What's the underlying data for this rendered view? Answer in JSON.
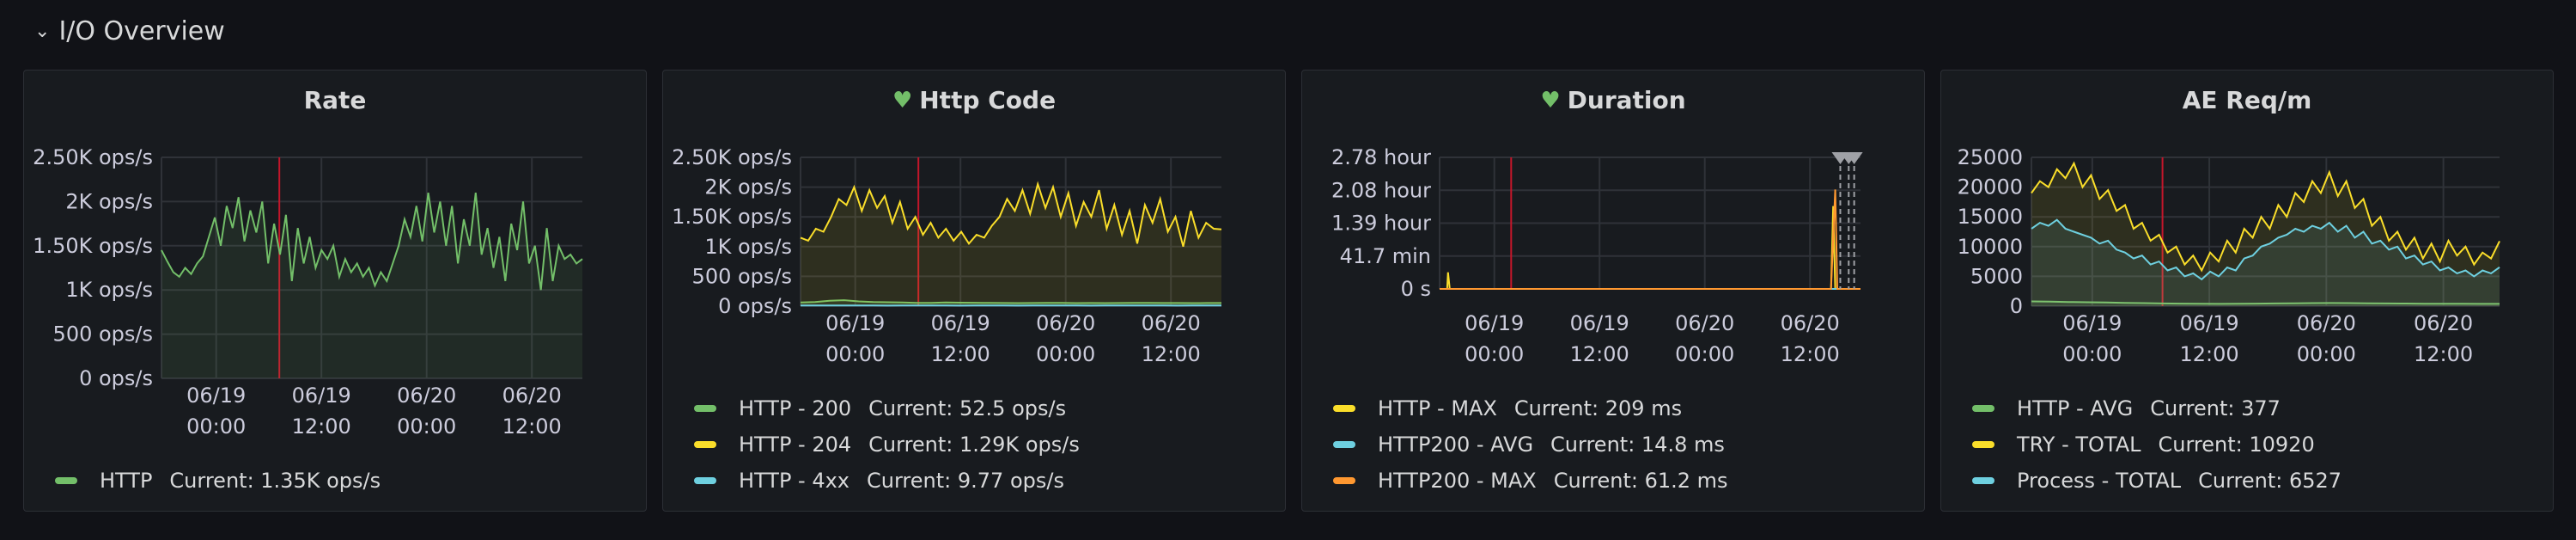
{
  "row": {
    "title": "I/O Overview",
    "chevron_icon": "chevron-down-icon"
  },
  "colors": {
    "green": "#73bf69",
    "yellow": "#fade2a",
    "blue": "#8ab8ff",
    "cyan": "#6ed0e0",
    "orange": "#ff9830",
    "red": "#c4162a"
  },
  "panels": [
    {
      "title": "Rate",
      "health_icon": false,
      "legend": [
        {
          "name": "HTTP",
          "value": "Current: 1.35K ops/s",
          "color": "#73bf69"
        }
      ]
    },
    {
      "title": "Http Code",
      "health_icon": true,
      "legend": [
        {
          "name": "HTTP - 200",
          "value": "Current: 52.5 ops/s",
          "color": "#73bf69"
        },
        {
          "name": "HTTP - 204",
          "value": "Current: 1.29K ops/s",
          "color": "#fade2a"
        },
        {
          "name": "HTTP - 4xx",
          "value": "Current: 9.77 ops/s",
          "color": "#6ed0e0"
        }
      ]
    },
    {
      "title": "Duration",
      "health_icon": true,
      "legend": [
        {
          "name": "HTTP - MAX",
          "value": "Current: 209 ms",
          "color": "#fade2a"
        },
        {
          "name": "HTTP200 - AVG",
          "value": "Current: 14.8 ms",
          "color": "#6ed0e0"
        },
        {
          "name": "HTTP200 - MAX",
          "value": "Current: 61.2 ms",
          "color": "#ff9830"
        }
      ]
    },
    {
      "title": "AE Req/m",
      "health_icon": false,
      "legend": [
        {
          "name": "HTTP - AVG",
          "value": "Current: 377",
          "color": "#73bf69"
        },
        {
          "name": "TRY - TOTAL",
          "value": "Current: 10920",
          "color": "#fade2a"
        },
        {
          "name": "Process - TOTAL",
          "value": "Current: 6527",
          "color": "#6ed0e0"
        }
      ]
    }
  ],
  "chart_data": [
    {
      "type": "area",
      "title": "Rate",
      "x_ticks": [
        "06/19\n00:00",
        "06/19\n12:00",
        "06/20\n00:00",
        "06/20\n12:00"
      ],
      "y_ticks": [
        "0 ops/s",
        "500 ops/s",
        "1K ops/s",
        "1.50K ops/s",
        "2K ops/s",
        "2.50K ops/s"
      ],
      "ylim": [
        0,
        2500
      ],
      "series": [
        {
          "name": "HTTP",
          "color": "#73bf69",
          "values": [
            1450,
            1320,
            1200,
            1150,
            1250,
            1180,
            1300,
            1380,
            1600,
            1820,
            1500,
            1950,
            1700,
            2050,
            1550,
            1900,
            1650,
            2000,
            1300,
            1750,
            1400,
            1850,
            1100,
            1700,
            1300,
            1600,
            1250,
            1450,
            1350,
            1500,
            1150,
            1350,
            1200,
            1300,
            1150,
            1250,
            1050,
            1200,
            1100,
            1300,
            1500,
            1800,
            1600,
            1950,
            1550,
            2100,
            1650,
            2000,
            1500,
            1950,
            1300,
            1800,
            1500,
            2100,
            1400,
            1700,
            1250,
            1600,
            1100,
            1750,
            1450,
            2000,
            1300,
            1500,
            1000,
            1700,
            1100,
            1500,
            1350,
            1400,
            1300,
            1350
          ]
        }
      ]
    },
    {
      "type": "area",
      "title": "Http Code",
      "x_ticks": [
        "06/19\n00:00",
        "06/19\n12:00",
        "06/20\n00:00",
        "06/20\n12:00"
      ],
      "y_ticks": [
        "0 ops/s",
        "500 ops/s",
        "1K ops/s",
        "1.50K ops/s",
        "2K ops/s",
        "2.50K ops/s"
      ],
      "ylim": [
        0,
        2500
      ],
      "series": [
        {
          "name": "HTTP - 200",
          "color": "#73bf69",
          "values": [
            60,
            70,
            90,
            100,
            80,
            70,
            65,
            60,
            55,
            55,
            60,
            58,
            56,
            54,
            52,
            50,
            52,
            55,
            53,
            50,
            52,
            51,
            52,
            55,
            53,
            52,
            52,
            50,
            52,
            52
          ]
        },
        {
          "name": "HTTP - 204",
          "color": "#fade2a",
          "values": [
            1150,
            1100,
            1300,
            1250,
            1500,
            1800,
            1700,
            2000,
            1600,
            1950,
            1650,
            1850,
            1400,
            1750,
            1300,
            1500,
            1200,
            1400,
            1150,
            1300,
            1100,
            1250,
            1050,
            1200,
            1150,
            1350,
            1500,
            1800,
            1600,
            1950,
            1550,
            2050,
            1650,
            2000,
            1500,
            1900,
            1350,
            1750,
            1500,
            1950,
            1300,
            1700,
            1200,
            1600,
            1050,
            1700,
            1400,
            1800,
            1250,
            1500,
            1000,
            1600,
            1150,
            1400,
            1300,
            1290
          ]
        },
        {
          "name": "HTTP - 4xx",
          "color": "#6ed0e0",
          "values": [
            10,
            10,
            12,
            11,
            10,
            10,
            9,
            10,
            10,
            11,
            10,
            9,
            10,
            10,
            10,
            9,
            10,
            10,
            10,
            10,
            9,
            10,
            10,
            10,
            10,
            10,
            9,
            10,
            10,
            9.77
          ]
        }
      ]
    },
    {
      "type": "line",
      "title": "Duration",
      "x_ticks": [
        "06/19\n00:00",
        "06/19\n12:00",
        "06/20\n00:00",
        "06/20\n12:00"
      ],
      "y_ticks": [
        "0 s",
        "41.7 min",
        "1.39 hour",
        "2.08 hour",
        "2.78 hour"
      ],
      "ylim": [
        0,
        2.78
      ],
      "series": [
        {
          "name": "HTTP - MAX",
          "color": "#fade2a",
          "points": [
            [
              0,
              0
            ],
            [
              0.018,
              0
            ],
            [
              0.02,
              0.35
            ],
            [
              0.024,
              0
            ],
            [
              0.93,
              0
            ],
            [
              0.935,
              1.75
            ],
            [
              0.94,
              0
            ],
            [
              0.97,
              0
            ],
            [
              1,
              0
            ]
          ]
        },
        {
          "name": "HTTP200 - AVG",
          "color": "#6ed0e0",
          "points": [
            [
              0,
              0
            ],
            [
              1,
              0
            ]
          ]
        },
        {
          "name": "HTTP200 - MAX",
          "color": "#ff9830",
          "points": [
            [
              0,
              0
            ],
            [
              0.93,
              0
            ],
            [
              0.94,
              2.1
            ],
            [
              0.945,
              0
            ],
            [
              1,
              0
            ]
          ]
        }
      ]
    },
    {
      "type": "area",
      "title": "AE Req/m",
      "x_ticks": [
        "06/19\n00:00",
        "06/19\n12:00",
        "06/20\n00:00",
        "06/20\n12:00"
      ],
      "y_ticks": [
        "0",
        "5000",
        "10000",
        "15000",
        "20000",
        "25000"
      ],
      "ylim": [
        0,
        25000
      ],
      "series": [
        {
          "name": "HTTP - AVG",
          "color": "#73bf69",
          "values": [
            800,
            750,
            700,
            650,
            600,
            550,
            500,
            450,
            420,
            400,
            380,
            400,
            420,
            450,
            480,
            500,
            520,
            500,
            480,
            450,
            430,
            410,
            400,
            390,
            380,
            377
          ]
        },
        {
          "name": "TRY - TOTAL",
          "color": "#fade2a",
          "values": [
            19000,
            21000,
            20000,
            23000,
            21500,
            24000,
            20000,
            22000,
            18000,
            19500,
            16000,
            17000,
            13000,
            14000,
            11000,
            12000,
            9000,
            10000,
            7000,
            8500,
            6000,
            9000,
            7500,
            11000,
            9000,
            13000,
            11500,
            15000,
            13000,
            17000,
            15000,
            19000,
            17500,
            21000,
            19000,
            22500,
            18500,
            21000,
            16500,
            18000,
            13500,
            15000,
            11000,
            12500,
            9500,
            11500,
            8000,
            10500,
            7500,
            11000,
            8500,
            10000,
            7000,
            9000,
            8000,
            10920
          ]
        },
        {
          "name": "Process - TOTAL",
          "color": "#6ed0e0",
          "values": [
            13000,
            14000,
            13500,
            14500,
            13000,
            12500,
            12000,
            11500,
            10500,
            11000,
            9500,
            9000,
            8000,
            8500,
            7000,
            7500,
            6000,
            6500,
            5000,
            5500,
            4500,
            5800,
            5000,
            6500,
            6000,
            8000,
            8500,
            10000,
            10500,
            11500,
            12000,
            13000,
            12500,
            13500,
            13000,
            14000,
            12500,
            13500,
            11500,
            12500,
            10500,
            11000,
            9500,
            10000,
            8000,
            8500,
            7000,
            7500,
            6000,
            6500,
            5500,
            6000,
            5000,
            6000,
            5500,
            6527
          ]
        }
      ]
    }
  ]
}
